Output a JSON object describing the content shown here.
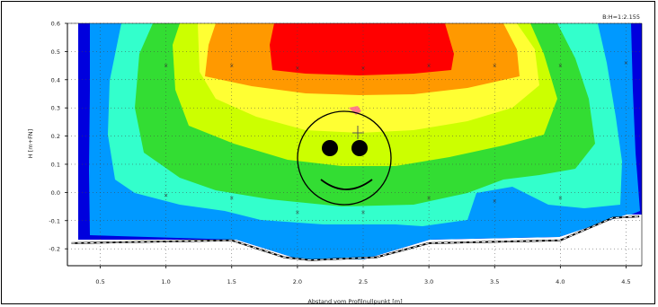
{
  "chart_data": {
    "type": "heatmap",
    "title": "",
    "scale_label": "B:H=1:2.155",
    "xlabel": "Abstand vom Profilnullpunkt [m]",
    "ylabel": "H [m+FN]",
    "xlim": [
      0.25,
      4.62
    ],
    "ylim": [
      -0.26,
      0.6
    ],
    "x_ticks": [
      "0.5",
      "1.0",
      "1.5",
      "2.0",
      "2.5",
      "3.0",
      "3.5",
      "4.0",
      "4.5"
    ],
    "y_ticks": [
      "0.6",
      "0.5",
      "0.4",
      "0.3",
      "0.2",
      "0.1",
      "0.0",
      "-0.1",
      "-0.2"
    ],
    "grid": true,
    "colors": [
      "#0000dd",
      "#0099ff",
      "#33ffcc",
      "#33dd33",
      "#ccff00",
      "#ffff33",
      "#ff9900",
      "#ff0000"
    ],
    "measurement_points": [
      {
        "x": 1.0,
        "y": 0.45
      },
      {
        "x": 1.5,
        "y": 0.45
      },
      {
        "x": 2.0,
        "y": 0.44
      },
      {
        "x": 2.5,
        "y": 0.44
      },
      {
        "x": 3.0,
        "y": 0.45
      },
      {
        "x": 3.5,
        "y": 0.45
      },
      {
        "x": 4.0,
        "y": 0.45
      },
      {
        "x": 4.5,
        "y": 0.46
      },
      {
        "x": 1.0,
        "y": -0.01
      },
      {
        "x": 1.5,
        "y": -0.02
      },
      {
        "x": 2.0,
        "y": -0.07
      },
      {
        "x": 2.5,
        "y": -0.07
      },
      {
        "x": 3.0,
        "y": -0.02
      },
      {
        "x": 3.5,
        "y": -0.03
      },
      {
        "x": 4.0,
        "y": -0.02
      }
    ],
    "bed_profile": [
      {
        "x": 0.28,
        "y": -0.18
      },
      {
        "x": 1.5,
        "y": -0.17
      },
      {
        "x": 1.9,
        "y": -0.23
      },
      {
        "x": 2.1,
        "y": -0.24
      },
      {
        "x": 2.6,
        "y": -0.23
      },
      {
        "x": 3.0,
        "y": -0.18
      },
      {
        "x": 4.0,
        "y": -0.17
      },
      {
        "x": 4.4,
        "y": -0.09
      },
      {
        "x": 4.6,
        "y": -0.085
      }
    ]
  }
}
